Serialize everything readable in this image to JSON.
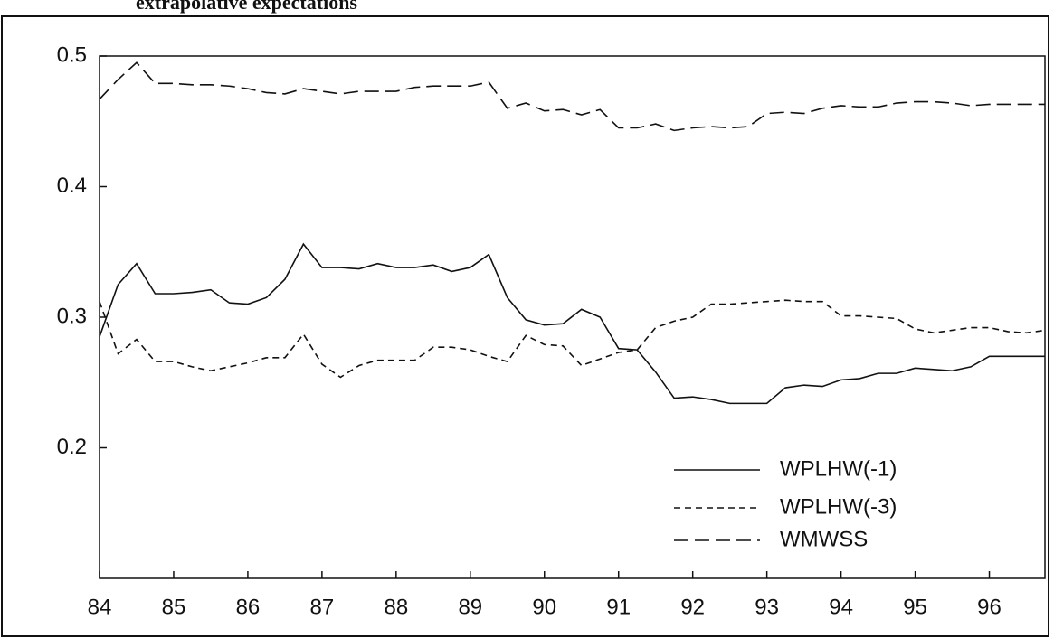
{
  "chart_data": {
    "type": "line",
    "title": "extrapolative expectations",
    "x": [
      84,
      84.25,
      84.5,
      84.75,
      85,
      85.25,
      85.5,
      85.75,
      86,
      86.25,
      86.5,
      86.75,
      87,
      87.25,
      87.5,
      87.75,
      88,
      88.25,
      88.5,
      88.75,
      89,
      89.25,
      89.5,
      89.75,
      90,
      90.25,
      90.5,
      90.75,
      91,
      91.25,
      91.5,
      91.75,
      92,
      92.25,
      92.5,
      92.75,
      93,
      93.25,
      93.5,
      93.75,
      94,
      94.25,
      94.5,
      94.75,
      95,
      95.25,
      95.5,
      95.75,
      96,
      96.25,
      96.5,
      96.75
    ],
    "series": [
      {
        "name": "WPLHW(-1)",
        "color": "#111111",
        "dash": "solid",
        "values": [
          0.285,
          0.325,
          0.341,
          0.318,
          0.318,
          0.319,
          0.321,
          0.311,
          0.31,
          0.315,
          0.329,
          0.356,
          0.338,
          0.338,
          0.337,
          0.341,
          0.338,
          0.338,
          0.34,
          0.335,
          0.338,
          0.348,
          0.315,
          0.298,
          0.294,
          0.295,
          0.306,
          0.3,
          0.276,
          0.275,
          0.258,
          0.238,
          0.239,
          0.237,
          0.234,
          0.234,
          0.234,
          0.246,
          0.248,
          0.247,
          0.252,
          0.253,
          0.257,
          0.257,
          0.261,
          0.26,
          0.259,
          0.262,
          0.27,
          0.27,
          0.27,
          0.27
        ]
      },
      {
        "name": "WPLHW(-3)",
        "color": "#111111",
        "dash": "short",
        "values": [
          0.312,
          0.272,
          0.283,
          0.266,
          0.266,
          0.262,
          0.259,
          0.262,
          0.265,
          0.269,
          0.269,
          0.287,
          0.264,
          0.254,
          0.263,
          0.267,
          0.267,
          0.267,
          0.277,
          0.277,
          0.275,
          0.27,
          0.266,
          0.286,
          0.279,
          0.278,
          0.263,
          0.268,
          0.273,
          0.275,
          0.292,
          0.297,
          0.3,
          0.31,
          0.31,
          0.311,
          0.312,
          0.313,
          0.312,
          0.312,
          0.301,
          0.301,
          0.3,
          0.299,
          0.291,
          0.288,
          0.29,
          0.292,
          0.292,
          0.289,
          0.288,
          0.29
        ]
      },
      {
        "name": "WMWSS",
        "color": "#111111",
        "dash": "long",
        "values": [
          0.467,
          0.482,
          0.495,
          0.479,
          0.479,
          0.478,
          0.478,
          0.477,
          0.475,
          0.472,
          0.471,
          0.475,
          0.473,
          0.471,
          0.473,
          0.473,
          0.473,
          0.476,
          0.477,
          0.477,
          0.477,
          0.48,
          0.46,
          0.464,
          0.458,
          0.459,
          0.455,
          0.459,
          0.445,
          0.445,
          0.448,
          0.443,
          0.445,
          0.446,
          0.445,
          0.446,
          0.456,
          0.457,
          0.456,
          0.46,
          0.462,
          0.461,
          0.461,
          0.464,
          0.465,
          0.465,
          0.464,
          0.462,
          0.463,
          0.463,
          0.463,
          0.463
        ]
      }
    ],
    "xlim": [
      84,
      96.75
    ],
    "xticks": [
      {
        "value": 84,
        "label": "84"
      },
      {
        "value": 85,
        "label": "85"
      },
      {
        "value": 86,
        "label": "86"
      },
      {
        "value": 87,
        "label": "87"
      },
      {
        "value": 88,
        "label": "88"
      },
      {
        "value": 89,
        "label": "89"
      },
      {
        "value": 90,
        "label": "90"
      },
      {
        "value": 91,
        "label": "91"
      },
      {
        "value": 92,
        "label": "92"
      },
      {
        "value": 93,
        "label": "93"
      },
      {
        "value": 94,
        "label": "94"
      },
      {
        "value": 95,
        "label": "95"
      },
      {
        "value": 96,
        "label": "96"
      }
    ],
    "ylim": [
      0.1,
      0.5
    ],
    "yticks": [
      0.2,
      0.3,
      0.4,
      0.5
    ],
    "grid": false,
    "legend": "lower right"
  }
}
